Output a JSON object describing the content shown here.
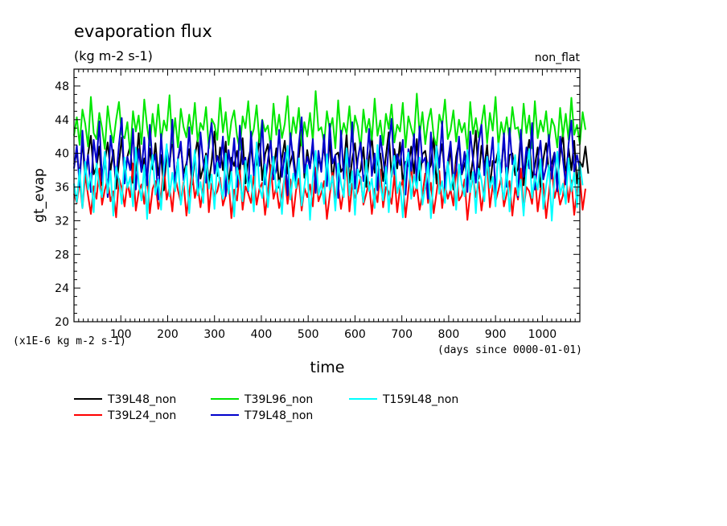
{
  "chart_data": {
    "type": "line",
    "title": "evaporation flux",
    "subtitle": "(kg m-2 s-1)",
    "corner_label": "non_flat",
    "ylabel": "gt_evap",
    "xlabel": "time",
    "y_unit_note": "(x1E-6 kg m-2 s-1)",
    "x_unit_note": "(days since 0000-01-01)",
    "xlim": [
      0,
      1080
    ],
    "ylim": [
      20,
      50
    ],
    "x_ticks": [
      100,
      200,
      300,
      400,
      500,
      600,
      700,
      800,
      900,
      1000
    ],
    "y_ticks": [
      20,
      24,
      28,
      32,
      36,
      40,
      44,
      48
    ],
    "sample_spacing_days": 6,
    "series": [
      {
        "name": "T39L48_non",
        "color": "#000000",
        "mean": 38.7,
        "range": [
          34.5,
          43.0
        ],
        "values": [
          38.7,
          40.1,
          37.2,
          41.6,
          36.8,
          39.9,
          42.1,
          37.5,
          38.4,
          40.8,
          36.2,
          39.1,
          41.3,
          37.9,
          40.4,
          35.8,
          38.9,
          41.9,
          37.1,
          39.6,
          40.9,
          36.5,
          38.2,
          42.4,
          37.8,
          39.4,
          36.9,
          40.6,
          38.1,
          41.2,
          37.4,
          39.8,
          35.6,
          40.2,
          38.6,
          42.0,
          36.7,
          39.3,
          41.0,
          37.6,
          38.8,
          40.5,
          36.3,
          39.7,
          41.7,
          37.0,
          38.3,
          40.0,
          36.6,
          39.0,
          42.6,
          37.3,
          40.7,
          38.0,
          41.4,
          36.1,
          39.5,
          38.5,
          40.3,
          37.7,
          41.8,
          36.4,
          39.2,
          40.8,
          37.9,
          38.7,
          42.2,
          36.8,
          39.9,
          41.1,
          37.2,
          38.1,
          40.6,
          35.9,
          39.4,
          41.5,
          37.6,
          38.9,
          40.2,
          36.9,
          39.6,
          42.8,
          37.1,
          40.4,
          38.3,
          41.0,
          36.2,
          39.1,
          38.6,
          40.9,
          37.5,
          41.6,
          36.6,
          39.8,
          40.1,
          37.8,
          38.4,
          42.3,
          36.5,
          39.3,
          41.2,
          37.4,
          38.0,
          40.7,
          36.0,
          39.5,
          41.9,
          37.7,
          38.8,
          40.0,
          36.7,
          39.7,
          42.5,
          37.2,
          40.5,
          38.2,
          41.3,
          36.3,
          39.0,
          38.5,
          40.8,
          37.6,
          41.7,
          36.8,
          39.9,
          40.3,
          37.9,
          38.6,
          42.0,
          36.4,
          39.2,
          41.1,
          37.3,
          38.1,
          40.6,
          35.7,
          39.6,
          41.4,
          37.5,
          38.7,
          40.2,
          36.9,
          39.4,
          42.7,
          37.0,
          40.9,
          38.3,
          41.0,
          36.1,
          39.1,
          38.9,
          40.4,
          37.8,
          41.8,
          36.6,
          39.8,
          40.0,
          37.4,
          38.2,
          42.1,
          36.2,
          39.5,
          41.6,
          37.1,
          38.5,
          40.7,
          35.9,
          39.3,
          41.2,
          37.7,
          38.8,
          40.1,
          36.5,
          39.9,
          42.4,
          37.2,
          40.6,
          38.0,
          41.5,
          36.4,
          39.0,
          38.4,
          40.8,
          37.6
        ]
      },
      {
        "name": "T39L24_non",
        "color": "#ff0000",
        "mean": 35.8,
        "range": [
          32.0,
          40.0
        ],
        "values": [
          35.2,
          34.1,
          36.8,
          33.5,
          37.4,
          35.0,
          32.8,
          36.1,
          34.6,
          38.2,
          33.9,
          35.7,
          36.9,
          34.3,
          35.5,
          32.4,
          37.0,
          35.9,
          33.7,
          36.5,
          34.8,
          38.8,
          33.2,
          35.4,
          36.3,
          34.0,
          37.6,
          32.9,
          35.8,
          36.7,
          33.4,
          35.1,
          38.5,
          34.5,
          36.0,
          33.1,
          37.2,
          35.6,
          34.2,
          36.6,
          32.6,
          35.3,
          37.8,
          34.7,
          36.2,
          33.6,
          35.9,
          39.1,
          33.0,
          36.4,
          34.9,
          35.5,
          37.1,
          33.8,
          35.0,
          36.8,
          32.3,
          35.7,
          34.4,
          38.0,
          33.3,
          36.1,
          35.2,
          34.1,
          37.5,
          33.9,
          35.8,
          36.5,
          32.7,
          35.4,
          38.6,
          34.6,
          36.0,
          33.5,
          35.1,
          37.3,
          34.0,
          36.9,
          32.5,
          35.6,
          37.0,
          33.2,
          35.9,
          34.8,
          36.3,
          33.7,
          38.3,
          34.3,
          35.3,
          36.7,
          32.2,
          35.0,
          37.7,
          34.5,
          36.2,
          33.4,
          35.7,
          38.9,
          33.1,
          36.4,
          34.7,
          35.5,
          37.2,
          33.9,
          35.2,
          36.6,
          32.8,
          35.8,
          34.2,
          38.1,
          33.6,
          36.0,
          35.4,
          34.0,
          37.4,
          33.0,
          35.9,
          36.8,
          32.4,
          35.6,
          38.4,
          34.9,
          36.1,
          33.3,
          35.1,
          37.6,
          34.1,
          36.5,
          32.9,
          35.3,
          37.9,
          33.5,
          36.3,
          34.6,
          35.7,
          33.8,
          38.7,
          34.4,
          35.0,
          36.9,
          32.1,
          35.4,
          37.3,
          34.8,
          36.6,
          33.2,
          35.8,
          39.0,
          33.6,
          36.2,
          34.3,
          35.6,
          37.1,
          33.7,
          35.2,
          36.7,
          32.6,
          35.9,
          34.5,
          38.2,
          33.4,
          36.0,
          35.5,
          34.0,
          37.5,
          33.1,
          35.7,
          36.4,
          32.3,
          35.3,
          38.5,
          34.7,
          36.1,
          33.9,
          35.0,
          37.8,
          34.2,
          36.8,
          32.7,
          35.6,
          37.2,
          33.3,
          35.8
        ]
      },
      {
        "name": "T39L96_non",
        "color": "#00e600",
        "mean": 42.6,
        "range": [
          38.5,
          47.5
        ],
        "values": [
          42.1,
          44.3,
          41.0,
          45.2,
          43.5,
          40.8,
          46.7,
          42.4,
          41.7,
          44.8,
          43.0,
          40.5,
          45.6,
          42.9,
          41.3,
          44.0,
          46.1,
          42.2,
          41.8,
          43.7,
          39.9,
          45.0,
          42.6,
          44.5,
          41.1,
          46.4,
          43.2,
          40.9,
          44.7,
          42.0,
          45.8,
          41.5,
          43.9,
          42.7,
          46.9,
          41.2,
          44.2,
          40.7,
          45.3,
          43.1,
          41.9,
          44.6,
          42.3,
          46.0,
          41.4,
          43.6,
          42.8,
          45.5,
          40.6,
          44.1,
          43.4,
          41.6,
          46.6,
          42.5,
          44.9,
          41.0,
          43.8,
          45.1,
          42.1,
          40.4,
          44.4,
          43.0,
          46.2,
          41.7,
          42.9,
          45.7,
          41.3,
          44.0,
          42.6,
          43.3,
          40.8,
          45.9,
          42.2,
          44.6,
          41.8,
          43.5,
          46.8,
          41.1,
          44.3,
          42.4,
          45.4,
          40.9,
          43.7,
          42.0,
          44.8,
          41.5,
          47.4,
          42.7,
          43.1,
          41.2,
          45.0,
          42.8,
          44.2,
          40.6,
          46.3,
          41.9,
          43.6,
          42.3,
          45.6,
          41.4,
          44.5,
          43.2,
          40.5,
          45.2,
          42.5,
          44.1,
          41.6,
          46.5,
          42.1,
          43.9,
          41.0,
          44.7,
          42.9,
          45.8,
          41.3,
          43.4,
          42.6,
          46.0,
          40.7,
          44.4,
          43.0,
          41.8,
          47.1,
          42.2,
          44.9,
          41.1,
          43.8,
          45.3,
          42.0,
          40.8,
          44.6,
          43.3,
          46.4,
          41.7,
          42.8,
          45.1,
          41.4,
          44.0,
          42.5,
          43.6,
          40.4,
          46.1,
          42.3,
          44.2,
          41.9,
          43.5,
          45.7,
          41.2,
          44.8,
          42.7,
          46.7,
          40.9,
          43.7,
          42.1,
          44.3,
          41.5,
          45.5,
          42.9,
          43.1,
          41.0,
          45.9,
          42.4,
          44.5,
          40.6,
          46.2,
          41.8,
          43.9,
          42.6,
          45.0,
          41.3,
          44.1,
          43.2,
          40.7,
          45.4,
          42.0,
          44.7,
          41.6,
          46.6,
          42.2,
          43.4,
          41.1,
          44.9,
          42.8
        ]
      },
      {
        "name": "T79L48_non",
        "color": "#0000cc",
        "mean": 39.0,
        "range": [
          33.0,
          44.5
        ],
        "values": [
          38.2,
          40.9,
          36.1,
          42.7,
          37.5,
          39.8,
          35.4,
          41.6,
          38.9,
          43.8,
          36.7,
          40.2,
          34.8,
          42.1,
          39.3,
          37.0,
          41.0,
          44.2,
          36.4,
          39.6,
          38.0,
          42.9,
          35.7,
          40.5,
          37.8,
          41.9,
          36.2,
          43.4,
          38.6,
          39.9,
          34.5,
          42.3,
          37.3,
          40.7,
          38.4,
          44.0,
          35.9,
          39.4,
          41.4,
          36.8,
          38.1,
          43.1,
          37.1,
          40.0,
          35.2,
          42.5,
          39.0,
          36.5,
          41.2,
          43.6,
          37.6,
          39.7,
          38.3,
          42.0,
          34.9,
          40.4,
          37.9,
          41.8,
          36.0,
          43.3,
          38.7,
          39.5,
          35.5,
          42.6,
          37.4,
          40.8,
          38.5,
          43.9,
          36.3,
          39.2,
          41.5,
          36.9,
          38.0,
          42.8,
          37.2,
          40.1,
          35.0,
          42.4,
          39.1,
          36.6,
          41.1,
          44.3,
          37.7,
          39.6,
          38.2,
          41.7,
          35.3,
          40.3,
          37.8,
          42.2,
          36.1,
          43.5,
          38.8,
          39.8,
          34.7,
          42.7,
          37.0,
          40.6,
          38.4,
          43.7,
          35.8,
          39.3,
          41.3,
          36.7,
          38.1,
          42.9,
          37.3,
          40.0,
          35.6,
          42.1,
          39.4,
          36.4,
          41.0,
          44.1,
          37.5,
          39.9,
          38.6,
          41.6,
          35.1,
          40.5,
          37.9,
          42.3,
          36.2,
          43.2,
          38.9,
          39.5,
          34.6,
          42.5,
          37.1,
          40.9,
          38.3,
          43.8,
          35.9,
          39.0,
          41.4,
          36.8,
          38.0,
          42.0,
          37.6,
          40.2,
          35.4,
          42.6,
          39.2,
          36.5,
          41.2,
          43.4,
          37.4,
          39.7,
          38.5,
          41.9,
          35.2,
          40.4,
          37.7,
          42.4,
          36.0,
          43.0,
          38.7,
          39.6,
          34.8,
          42.8,
          37.2,
          40.7,
          38.2,
          43.6,
          35.7,
          39.1,
          41.5,
          36.9,
          38.4,
          42.2,
          37.0,
          40.1,
          35.5,
          42.0,
          39.3,
          36.3,
          41.1,
          43.9,
          37.8,
          39.8,
          38.1
        ]
      },
      {
        "name": "T159L48_non",
        "color": "#00ffff",
        "mean": 36.8,
        "range": [
          31.5,
          42.0
        ],
        "values": [
          36.4,
          34.2,
          38.1,
          33.5,
          39.0,
          35.7,
          37.6,
          33.0,
          38.8,
          36.1,
          34.8,
          40.2,
          35.3,
          37.9,
          32.6,
          38.4,
          36.8,
          34.0,
          39.5,
          35.9,
          37.2,
          33.7,
          40.7,
          36.5,
          34.4,
          38.6,
          32.2,
          37.3,
          39.8,
          35.1,
          36.9,
          33.3,
          38.2,
          41.1,
          34.9,
          37.7,
          35.5,
          39.3,
          33.9,
          36.2,
          38.5,
          32.9,
          37.0,
          40.4,
          35.0,
          36.6,
          34.1,
          39.7,
          35.8,
          37.5,
          33.4,
          38.9,
          36.3,
          34.6,
          40.0,
          35.2,
          37.8,
          32.5,
          38.3,
          36.7,
          34.3,
          39.1,
          35.6,
          37.4,
          33.1,
          41.3,
          36.0,
          34.7,
          38.7,
          33.6,
          37.1,
          39.6,
          35.4,
          36.8,
          32.8,
          38.0,
          40.9,
          34.5,
          37.6,
          35.9,
          39.4,
          33.8,
          36.1,
          38.6,
          32.1,
          37.2,
          40.3,
          35.1,
          36.5,
          34.0,
          39.9,
          35.7,
          37.3,
          33.2,
          38.8,
          36.4,
          34.8,
          40.6,
          35.0,
          37.9,
          32.7,
          38.1,
          36.9,
          34.2,
          39.2,
          35.5,
          37.0,
          33.5,
          41.0,
          36.2,
          34.4,
          38.4,
          33.0,
          37.7,
          39.7,
          35.3,
          36.6,
          32.4,
          38.5,
          40.1,
          34.6,
          37.4,
          35.8,
          39.5,
          33.9,
          36.0,
          38.9,
          32.3,
          37.1,
          40.8,
          35.2,
          36.7,
          34.1,
          39.0,
          35.6,
          37.5,
          33.3,
          38.7,
          36.3,
          34.9,
          40.4,
          35.4,
          37.8,
          32.9,
          38.2,
          36.8,
          34.3,
          39.6,
          35.9,
          37.2,
          33.7,
          41.2,
          36.5,
          34.5,
          38.3,
          33.1,
          37.6,
          39.8,
          35.0,
          36.9,
          32.6,
          38.0,
          40.5,
          34.7,
          37.3,
          35.7,
          39.3,
          33.4,
          36.1,
          38.6,
          32.0,
          37.0,
          40.2,
          35.1,
          36.4,
          34.0,
          39.4,
          35.5,
          37.7,
          33.6,
          38.8,
          36.2
        ]
      }
    ]
  }
}
